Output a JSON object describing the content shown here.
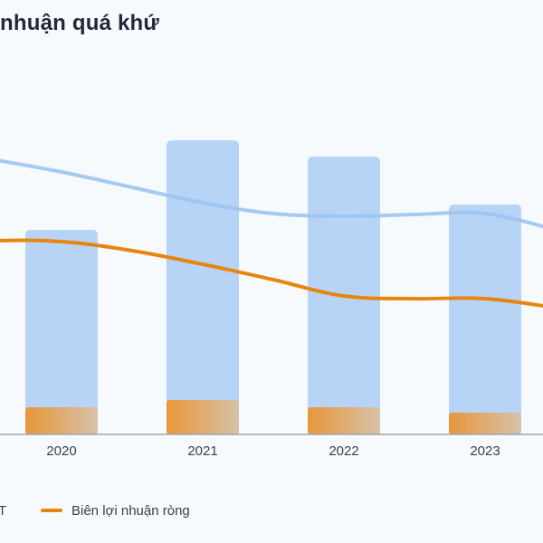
{
  "chart_data": {
    "type": "bar",
    "title": "nhuận quá khứ",
    "categories": [
      "2020",
      "2021",
      "2022",
      "2023"
    ],
    "bar_series": [
      {
        "name": "",
        "color": "#b7d4f7",
        "values": [
          226,
          325,
          307,
          254
        ]
      },
      {
        "name": "",
        "color": "#e8973a",
        "values": [
          30,
          38,
          30,
          24
        ]
      }
    ],
    "line_series": [
      {
        "name": "",
        "color": "#9cc3f0",
        "x": [
          2019.0,
          2019.5,
          2020.0,
          2020.5,
          2021.0,
          2021.5,
          2022.0,
          2022.5,
          2023.0,
          2023.5
        ],
        "values": [
          315,
          304,
          290,
          273,
          256,
          244,
          241,
          243,
          244,
          226
        ]
      },
      {
        "name": "Biên lợi nhuận ròng",
        "color": "#e8850f",
        "x": [
          2019.0,
          2019.5,
          2020.0,
          2020.5,
          2021.0,
          2021.5,
          2022.0,
          2022.5,
          2023.0,
          2023.5
        ],
        "values": [
          210,
          214,
          213,
          203,
          188,
          171,
          153,
          150,
          150,
          140
        ]
      }
    ],
    "legend": [
      {
        "label": "T",
        "color": "#9cc3f0"
      },
      {
        "label": "Biên lợi nhuận ròng",
        "color": "#e8850f"
      }
    ],
    "grid": false
  }
}
